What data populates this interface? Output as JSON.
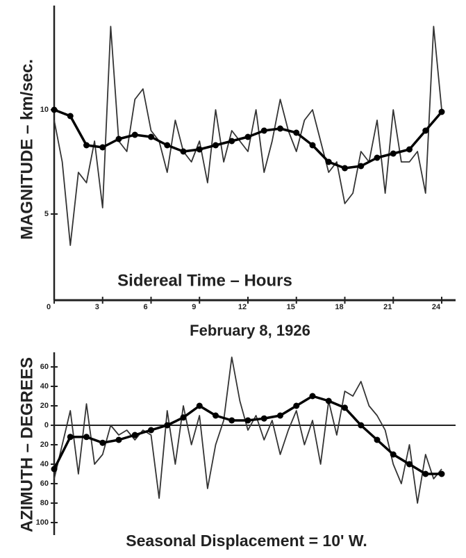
{
  "chart_data": [
    {
      "type": "line",
      "ylabel": "MAGNITUDE – km/sec.",
      "xlabel": "Sidereal Time – Hours",
      "subtitle": "February 8, 1926",
      "xlim": [
        0,
        24
      ],
      "xticks": [
        0,
        3,
        6,
        9,
        12,
        15,
        18,
        21,
        24
      ],
      "ylim": [
        1,
        15
      ],
      "yticks": [
        5,
        10
      ],
      "series": [
        {
          "color": "#333333",
          "markers": false,
          "x": [
            0,
            0.5,
            1,
            1.5,
            2,
            2.5,
            3,
            3.5,
            4,
            4.5,
            5,
            5.5,
            6,
            6.5,
            7,
            7.5,
            8,
            8.5,
            9,
            9.5,
            10,
            10.5,
            11,
            11.5,
            12,
            12.5,
            13,
            13.5,
            14,
            14.5,
            15,
            15.5,
            16,
            16.5,
            17,
            17.5,
            18,
            18.5,
            19,
            19.5,
            20,
            20.5,
            21,
            21.5,
            22,
            22.5,
            23,
            23.5,
            24
          ],
          "values": [
            9.5,
            7.5,
            3.5,
            7,
            6.5,
            8.5,
            5.3,
            14,
            8.5,
            8,
            10.5,
            11,
            9,
            8.5,
            7,
            9.5,
            8,
            7.5,
            8.5,
            6.5,
            10,
            7.5,
            9,
            8.5,
            8,
            10,
            7,
            8.5,
            10.5,
            9,
            8,
            9.5,
            10,
            8.5,
            7,
            7.5,
            5.5,
            6,
            8,
            7.5,
            9.5,
            6,
            10,
            7.5,
            7.5,
            8,
            6,
            14,
            10
          ]
        },
        {
          "color": "#000000",
          "markers": true,
          "x": [
            0,
            1,
            2,
            3,
            4,
            5,
            6,
            7,
            8,
            9,
            10,
            11,
            12,
            13,
            14,
            15,
            16,
            17,
            18,
            19,
            20,
            21,
            22,
            23,
            24
          ],
          "values": [
            10,
            9.7,
            8.3,
            8.2,
            8.6,
            8.8,
            8.7,
            8.3,
            8.0,
            8.1,
            8.3,
            8.5,
            8.7,
            9.0,
            9.1,
            8.9,
            8.3,
            7.5,
            7.2,
            7.3,
            7.7,
            7.9,
            8.1,
            9.0,
            9.9
          ]
        }
      ]
    },
    {
      "type": "line",
      "ylabel": "AZIMUTH – DEGREES",
      "annotation": "Seasonal Displacement = 10' W.",
      "xlim": [
        0,
        24
      ],
      "ylim": [
        -110,
        75
      ],
      "yticks": [
        60,
        40,
        20,
        0,
        {
          "value": -20,
          "label": "20"
        },
        {
          "value": -40,
          "label": "40"
        },
        {
          "value": -60,
          "label": "60"
        },
        {
          "value": -80,
          "label": "80"
        },
        {
          "value": -100,
          "label": "100"
        }
      ],
      "series": [
        {
          "color": "#333333",
          "markers": false,
          "x": [
            0,
            0.5,
            1,
            1.5,
            2,
            2.5,
            3,
            3.5,
            4,
            4.5,
            5,
            5.5,
            6,
            6.5,
            7,
            7.5,
            8,
            8.5,
            9,
            9.5,
            10,
            10.5,
            11,
            11.5,
            12,
            12.5,
            13,
            13.5,
            14,
            14.5,
            15,
            15.5,
            16,
            16.5,
            17,
            17.5,
            18,
            18.5,
            19,
            19.5,
            20,
            20.5,
            21,
            21.5,
            22,
            22.5,
            23,
            23.5,
            24
          ],
          "values": [
            -55,
            -20,
            15,
            -50,
            22,
            -40,
            -30,
            0,
            -10,
            -5,
            -15,
            -5,
            -10,
            -75,
            15,
            -40,
            20,
            -20,
            10,
            -65,
            -20,
            5,
            70,
            25,
            -5,
            10,
            -15,
            5,
            -30,
            -5,
            15,
            -20,
            5,
            -40,
            25,
            -10,
            35,
            30,
            45,
            20,
            10,
            -5,
            -40,
            -60,
            -20,
            -80,
            -30,
            -55,
            -45
          ]
        },
        {
          "color": "#000000",
          "markers": true,
          "x": [
            0,
            1,
            2,
            3,
            4,
            5,
            6,
            7,
            8,
            9,
            10,
            11,
            12,
            13,
            14,
            15,
            16,
            17,
            18,
            19,
            20,
            21,
            22,
            23,
            24
          ],
          "values": [
            -45,
            -12,
            -12,
            -18,
            -15,
            -10,
            -5,
            0,
            8,
            20,
            10,
            5,
            5,
            7,
            10,
            20,
            30,
            25,
            18,
            0,
            -15,
            -30,
            -40,
            -50,
            -50
          ]
        }
      ]
    }
  ]
}
